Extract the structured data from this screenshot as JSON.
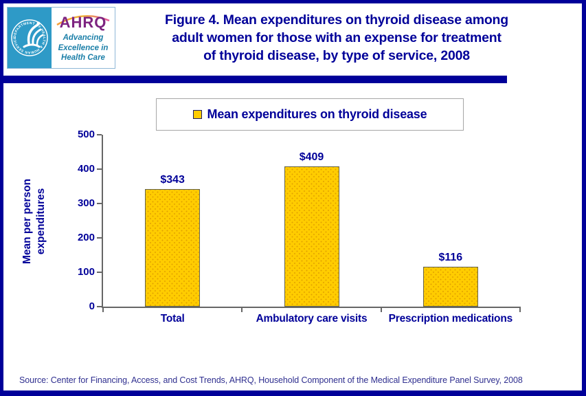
{
  "theme": {
    "navy": "#000099",
    "axis_gray": "#666666",
    "bar_fill": "#FFCC00",
    "bar_border": "#66664D",
    "seal_teal": "#2E9AC7",
    "ahrq_purple": "#7D2380",
    "tagline_teal": "#1B7FA8",
    "source_color": "#2F2F8F"
  },
  "header": {
    "logo": {
      "seal_text": "DEPARTMENT OF HEALTH & HUMAN SERVICES • USA",
      "acronym": "AHRQ",
      "tagline_lines": [
        "Advancing",
        "Excellence in",
        "Health Care"
      ]
    },
    "title_lines": [
      "Figure 4. Mean expenditures on thyroid disease among",
      "adult women for those with an expense for treatment",
      "of thyroid disease, by type of service, 2008"
    ]
  },
  "legend": {
    "label": "Mean expenditures on thyroid disease"
  },
  "chart_data": {
    "type": "bar",
    "title": "Figure 4. Mean expenditures on thyroid disease among adult women for those with an expense for treatment of thyroid disease, by type of service, 2008",
    "categories": [
      "Total",
      "Ambulatory care visits",
      "Prescription medications"
    ],
    "values": [
      343,
      409,
      116
    ],
    "value_labels": [
      "$343",
      "$409",
      "$116"
    ],
    "xlabel": "",
    "ylabel": "Mean per person expenditures",
    "ylabel_lines": [
      "Mean per person",
      "expenditures"
    ],
    "ylim": [
      0,
      500
    ],
    "yticks": [
      0,
      100,
      200,
      300,
      400,
      500
    ],
    "grid": false,
    "legend_entries": [
      "Mean expenditures on thyroid disease"
    ],
    "legend_position": "top",
    "bar_color": "#FFCC00"
  },
  "footer": {
    "source": "Source: Center for Financing, Access, and Cost Trends, AHRQ, Household Component of the Medical Expenditure Panel Survey, 2008"
  }
}
